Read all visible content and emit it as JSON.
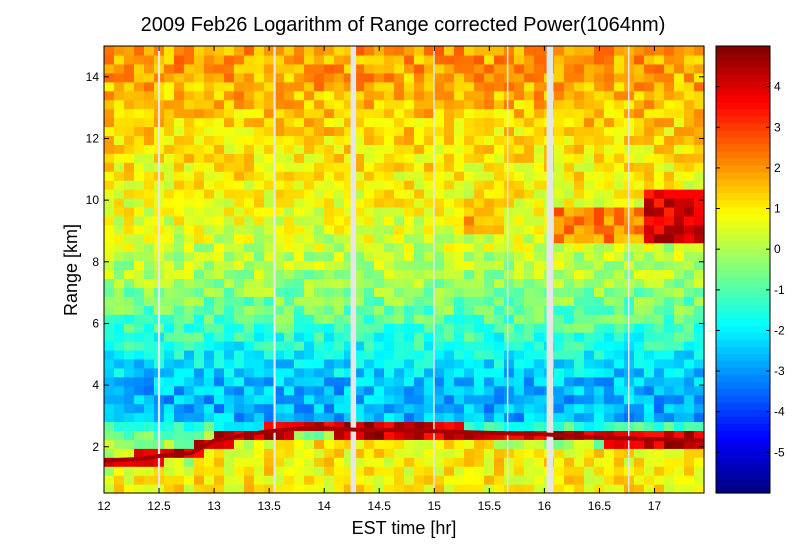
{
  "chart_data": {
    "type": "heatmap",
    "title": "2009 Feb26  Logarithm of Range corrected Power(1064nm)",
    "xlabel": "EST time [hr]",
    "ylabel": "Range [km]",
    "xlim": [
      12,
      17.45
    ],
    "ylim": [
      0.5,
      15
    ],
    "xticks": [
      12,
      12.5,
      13,
      13.5,
      14,
      14.5,
      15,
      15.5,
      16,
      16.5,
      17
    ],
    "xtick_labels": [
      "12",
      "12.5",
      "13",
      "13.5",
      "14",
      "14.5",
      "15",
      "15.5",
      "16",
      "16.5",
      "17"
    ],
    "yticks": [
      2,
      4,
      6,
      8,
      10,
      12,
      14
    ],
    "ytick_labels": [
      "2",
      "4",
      "6",
      "8",
      "10",
      "12",
      "14"
    ],
    "colorbar": {
      "colormap": "jet",
      "clim": [
        -6,
        5
      ],
      "ticks": [
        4,
        3,
        2,
        1,
        0,
        -1,
        -2,
        -3,
        -4,
        -5
      ],
      "tick_labels": [
        "4",
        "3",
        "2",
        "1",
        "0",
        "-1",
        "-2",
        "-3",
        "-4",
        "-5"
      ]
    },
    "data_gaps_hr": [
      [
        12.49,
        12.51
      ],
      [
        13.54,
        13.56
      ],
      [
        14.24,
        14.29
      ],
      [
        14.99,
        15.0
      ],
      [
        15.66,
        15.67
      ],
      [
        16.02,
        16.08
      ],
      [
        16.76,
        16.77
      ]
    ],
    "range_profile_km_to_value": [
      [
        0.5,
        1.2
      ],
      [
        1.5,
        0.3
      ],
      [
        2.5,
        -0.6
      ],
      [
        3.0,
        -2.8
      ],
      [
        4.0,
        -2.6
      ],
      [
        5.0,
        -1.9
      ],
      [
        6.0,
        -1.0
      ],
      [
        7.0,
        -0.4
      ],
      [
        8.0,
        0.1
      ],
      [
        9.0,
        0.5
      ],
      [
        10.0,
        0.8
      ],
      [
        11.0,
        1.0
      ],
      [
        12.0,
        1.2
      ],
      [
        13.0,
        1.5
      ],
      [
        14.0,
        1.8
      ],
      [
        15.0,
        2.0
      ]
    ],
    "boundary_layer_top_km": {
      "time_hr": [
        12.0,
        12.3,
        12.5,
        12.8,
        13.0,
        13.3,
        13.5,
        13.8,
        14.0,
        14.3,
        14.5,
        15.0,
        15.5,
        16.0,
        16.5,
        17.0,
        17.45
      ],
      "range_km": [
        1.55,
        1.6,
        1.7,
        1.8,
        2.2,
        2.4,
        2.5,
        2.6,
        2.6,
        2.55,
        2.55,
        2.5,
        2.45,
        2.4,
        2.3,
        2.25,
        2.2
      ]
    },
    "cloud_layers": [
      {
        "time_hr": [
          16.1,
          17.45
        ],
        "range_km": [
          8.6,
          9.8
        ],
        "value": 2.2
      },
      {
        "time_hr": [
          16.95,
          17.45
        ],
        "range_km": [
          8.7,
          10.3
        ],
        "value": 4.0
      },
      {
        "time_hr": [
          15.3,
          15.6
        ],
        "range_km": [
          9.0,
          10.0
        ],
        "value": 1.8
      }
    ]
  }
}
